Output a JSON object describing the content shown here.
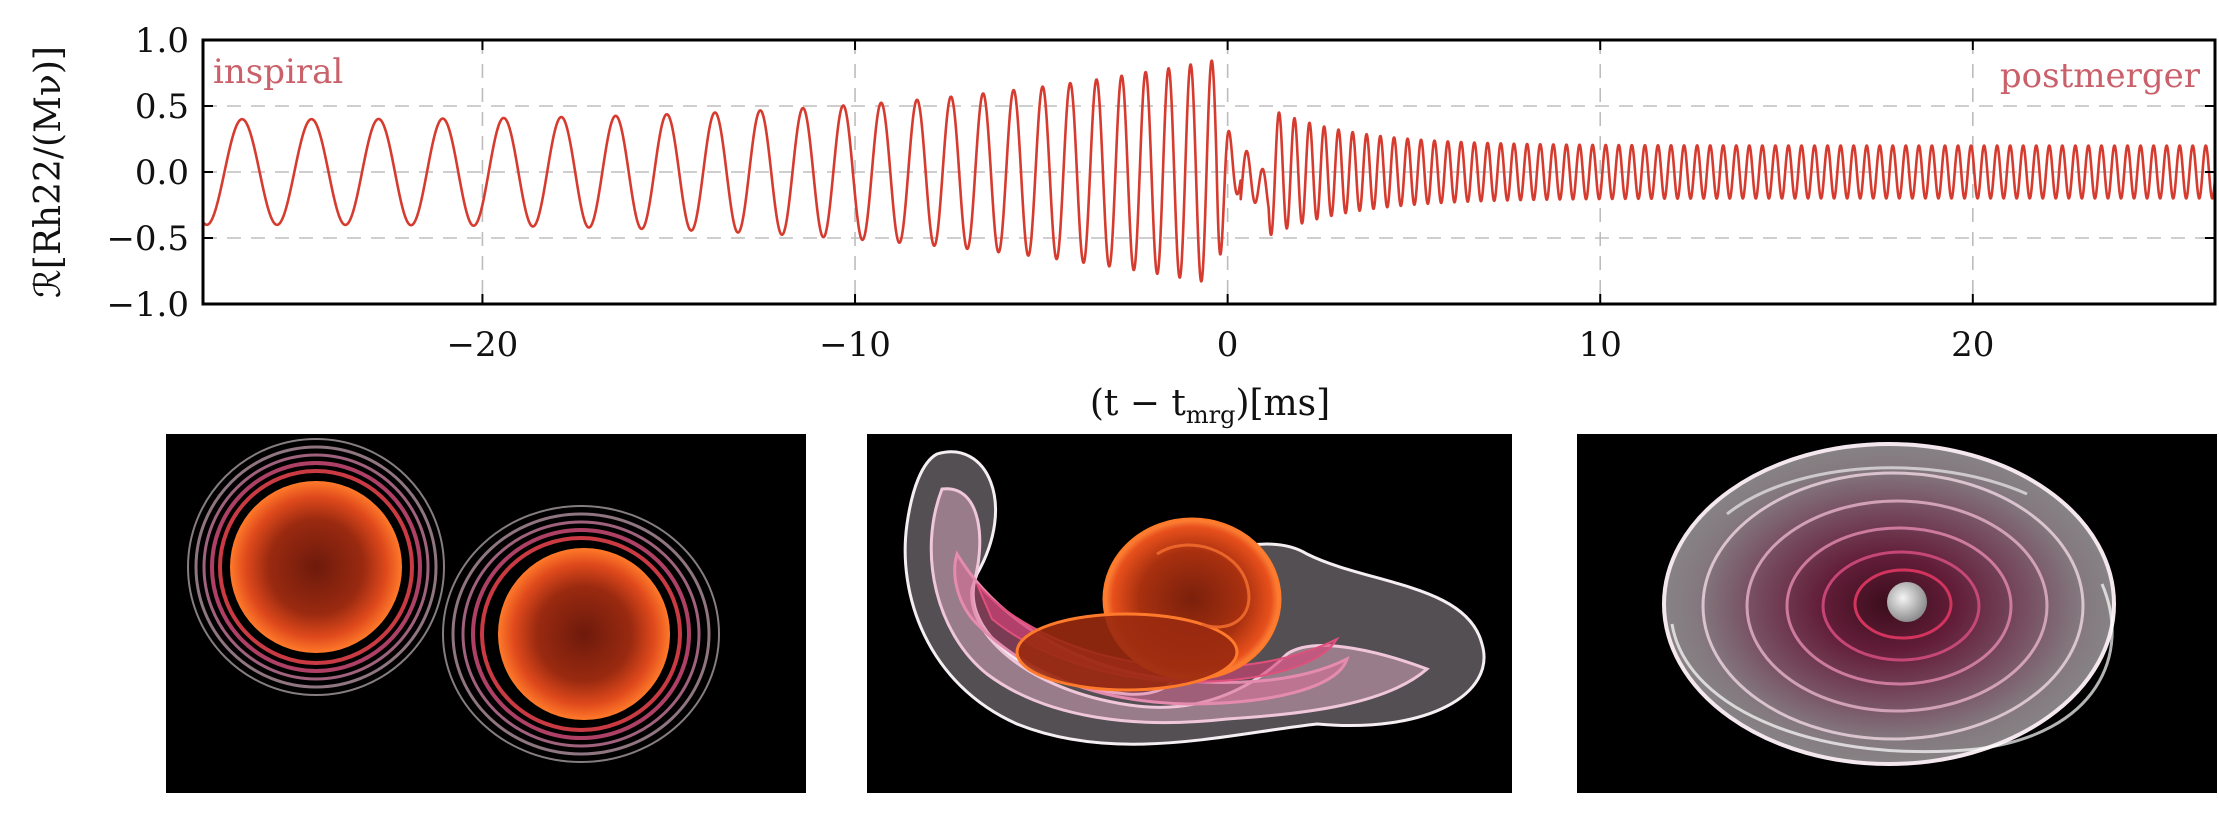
{
  "chart_data": {
    "type": "line",
    "xlabel": "(t − t_mrg)[ms]",
    "xlabel_main": "(t − t",
    "xlabel_sub": "mrg",
    "xlabel_tail": ")[ms]",
    "ylabel": "ℛ[Rh22/(Mν)]",
    "xlim": [
      -27.5,
      26.5
    ],
    "ylim": [
      -1.0,
      1.0
    ],
    "xticks": [
      -20,
      -10,
      0,
      10,
      20
    ],
    "xtick_labels": [
      "−20",
      "−10",
      "0",
      "10",
      "20"
    ],
    "yticks": [
      -1.0,
      -0.5,
      0.0,
      0.5,
      1.0
    ],
    "ytick_labels": [
      "−1.0",
      "−0.5",
      "0.0",
      "0.5",
      "1.0"
    ],
    "grid": "dashed-gray",
    "line_color": "#d63b2f",
    "annotation_color": "#c9606a",
    "annotations": [
      "inspiral",
      "postmerger"
    ],
    "series": [
      {
        "segments": [
          {
            "phase": "inspiral",
            "t_start": -27.5,
            "t_end": -0.3,
            "amplitude_start": 0.4,
            "amplitude_peak": 0.85,
            "period_start_ms": 1.9,
            "period_end_ms": 0.55
          },
          {
            "phase": "postmerger",
            "t_start": -0.3,
            "t_end": 26.5,
            "amplitude_start": 0.6,
            "amplitude_end": 0.2,
            "period_ms": 0.35
          }
        ]
      }
    ]
  },
  "panels": [
    {
      "stage": "inspiral",
      "palette": [
        "#000000",
        "#7a1f10",
        "#e0401c",
        "#d93a7a",
        "#f3cfe0"
      ]
    },
    {
      "stage": "merger",
      "palette": [
        "#000000",
        "#7a1f10",
        "#e0401c",
        "#d93a7a",
        "#f3cfe0"
      ]
    },
    {
      "stage": "postmerger",
      "palette": [
        "#000000",
        "#5a1530",
        "#d84a80",
        "#e8a8c4",
        "#f3e6ee",
        "#bdbdbd"
      ]
    }
  ]
}
